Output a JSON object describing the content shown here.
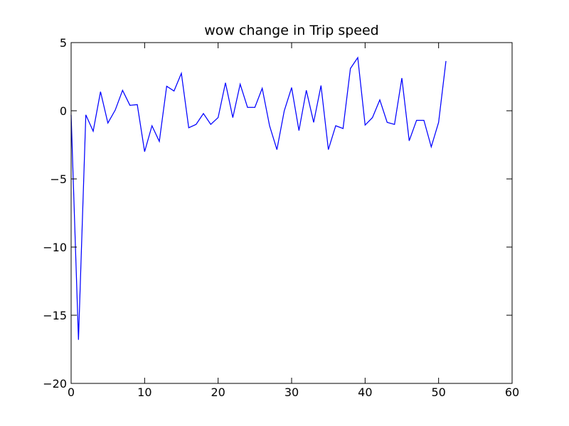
{
  "chart_data": {
    "type": "line",
    "title": "wow change in Trip speed",
    "xlabel": "",
    "ylabel": "",
    "xlim": [
      0,
      60
    ],
    "ylim": [
      -20,
      5
    ],
    "x_ticks": [
      0,
      10,
      20,
      30,
      40,
      50,
      60
    ],
    "y_ticks": [
      5,
      0,
      -5,
      -10,
      -15,
      -20
    ],
    "x_tick_labels": [
      "0",
      "10",
      "20",
      "30",
      "40",
      "50",
      "60"
    ],
    "y_tick_labels": [
      "5",
      "0",
      "−5",
      "−10",
      "−15",
      "−20"
    ],
    "grid": false,
    "legend": "none",
    "series": [
      {
        "color": "#0000ff",
        "x": [
          0,
          1,
          2,
          3,
          4,
          5,
          6,
          7,
          8,
          9,
          10,
          11,
          12,
          13,
          14,
          15,
          16,
          17,
          18,
          19,
          20,
          21,
          22,
          23,
          24,
          25,
          26,
          27,
          28,
          29,
          30,
          31,
          32,
          33,
          34,
          35,
          36,
          37,
          38,
          39,
          40,
          41,
          42,
          43,
          44,
          45,
          46,
          47,
          48,
          49,
          50,
          51
        ],
        "values": [
          -0.3,
          -16.8,
          -0.3,
          -1.5,
          1.4,
          -0.9,
          0.05,
          1.5,
          0.4,
          0.45,
          -3.0,
          -1.1,
          -2.25,
          1.8,
          1.45,
          2.75,
          -1.25,
          -1.0,
          -0.2,
          -1.0,
          -0.5,
          2.05,
          -0.5,
          1.95,
          0.25,
          0.25,
          1.65,
          -1.1,
          -2.85,
          0.0,
          1.7,
          -1.45,
          1.5,
          -0.85,
          1.85,
          -2.85,
          -1.1,
          -1.3,
          3.1,
          3.9,
          -1.05,
          -0.5,
          0.8,
          -0.85,
          -1.0,
          2.4,
          -2.2,
          -0.7,
          -0.7,
          -2.65,
          -0.85,
          3.65
        ]
      }
    ]
  }
}
